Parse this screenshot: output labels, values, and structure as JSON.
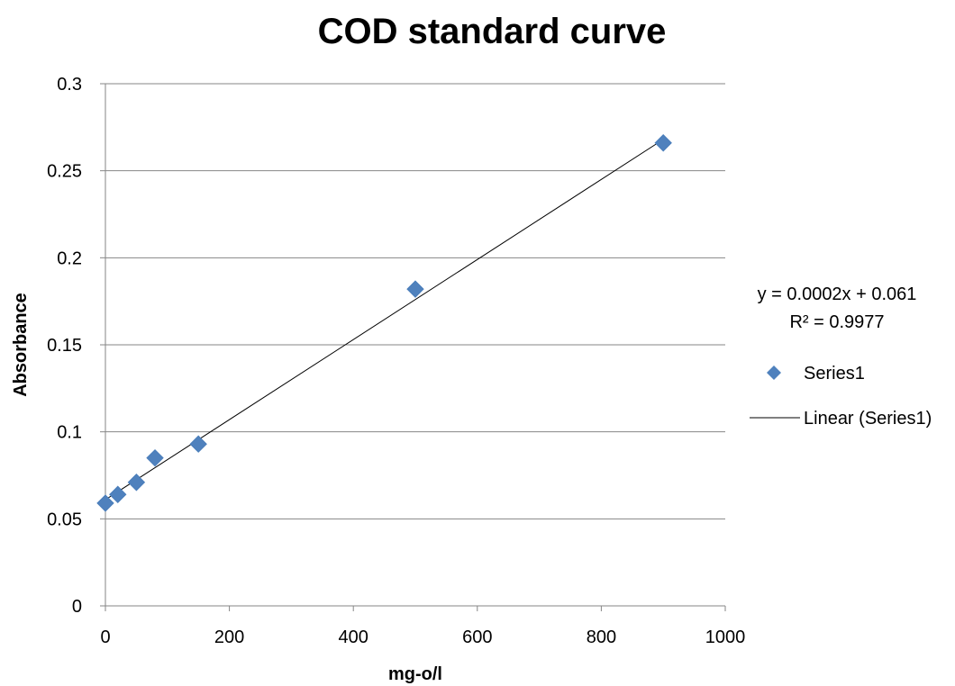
{
  "chart_data": {
    "type": "scatter",
    "title": "COD standard curve",
    "xlabel": "mg-o/l",
    "ylabel": "Absorbance",
    "xlim": [
      0,
      1000
    ],
    "ylim": [
      0,
      0.3
    ],
    "x_ticks": [
      "0",
      "200",
      "400",
      "600",
      "800",
      "1000"
    ],
    "y_ticks": [
      "0",
      "0.05",
      "0.1",
      "0.15",
      "0.2",
      "0.25",
      "0.3"
    ],
    "grid": "horizontal",
    "legend_position": "right",
    "series": [
      {
        "name": "Series1",
        "color": "#4F81BD",
        "marker": "diamond",
        "points": [
          {
            "x": 0,
            "y": 0.059
          },
          {
            "x": 20,
            "y": 0.064
          },
          {
            "x": 50,
            "y": 0.071
          },
          {
            "x": 80,
            "y": 0.085
          },
          {
            "x": 150,
            "y": 0.093
          },
          {
            "x": 500,
            "y": 0.182
          },
          {
            "x": 900,
            "y": 0.266
          }
        ]
      }
    ],
    "trendline": {
      "name": "Linear (Series1)",
      "color": "#000000",
      "x_range": [
        0,
        900
      ],
      "y_range": [
        0.061,
        0.268
      ]
    },
    "annotations": {
      "equation": "y = 0.0002x + 0.061",
      "r_squared": "R² = 0.9977"
    }
  }
}
